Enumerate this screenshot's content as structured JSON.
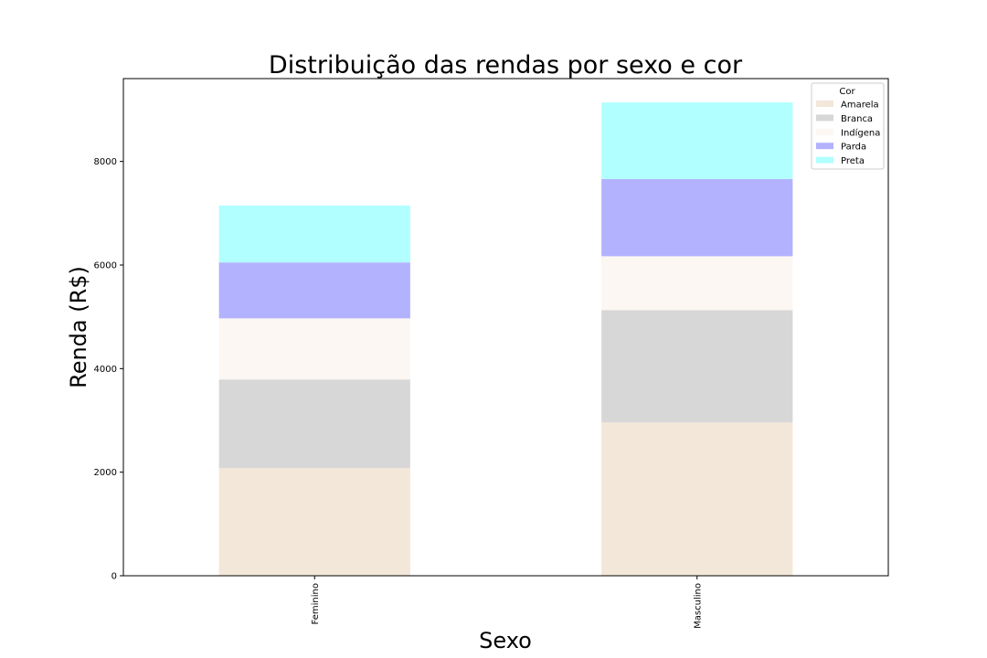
{
  "chart_data": {
    "type": "bar",
    "stacked": true,
    "title": "Distribuição das rendas por sexo e cor",
    "xlabel": "Sexo",
    "ylabel": "Renda (R$)",
    "categories": [
      "Feminino",
      "Masculino"
    ],
    "ylim": [
      0,
      9600
    ],
    "yticks": [
      0,
      2000,
      4000,
      6000,
      8000
    ],
    "grid": false,
    "legend": {
      "title": "Cor",
      "position": "top-right"
    },
    "series": [
      {
        "name": "Amarela",
        "color": "#f3e7d9",
        "values": [
          2080,
          2960
        ]
      },
      {
        "name": "Branca",
        "color": "#d7d7d7",
        "values": [
          1710,
          2170
        ]
      },
      {
        "name": "Indígena",
        "color": "#fcf7f2",
        "values": [
          1180,
          1040
        ]
      },
      {
        "name": "Parda",
        "color": "#b2b2ff",
        "values": [
          1080,
          1490
        ]
      },
      {
        "name": "Preta",
        "color": "#b2ffff",
        "values": [
          1100,
          1480
        ]
      }
    ]
  }
}
